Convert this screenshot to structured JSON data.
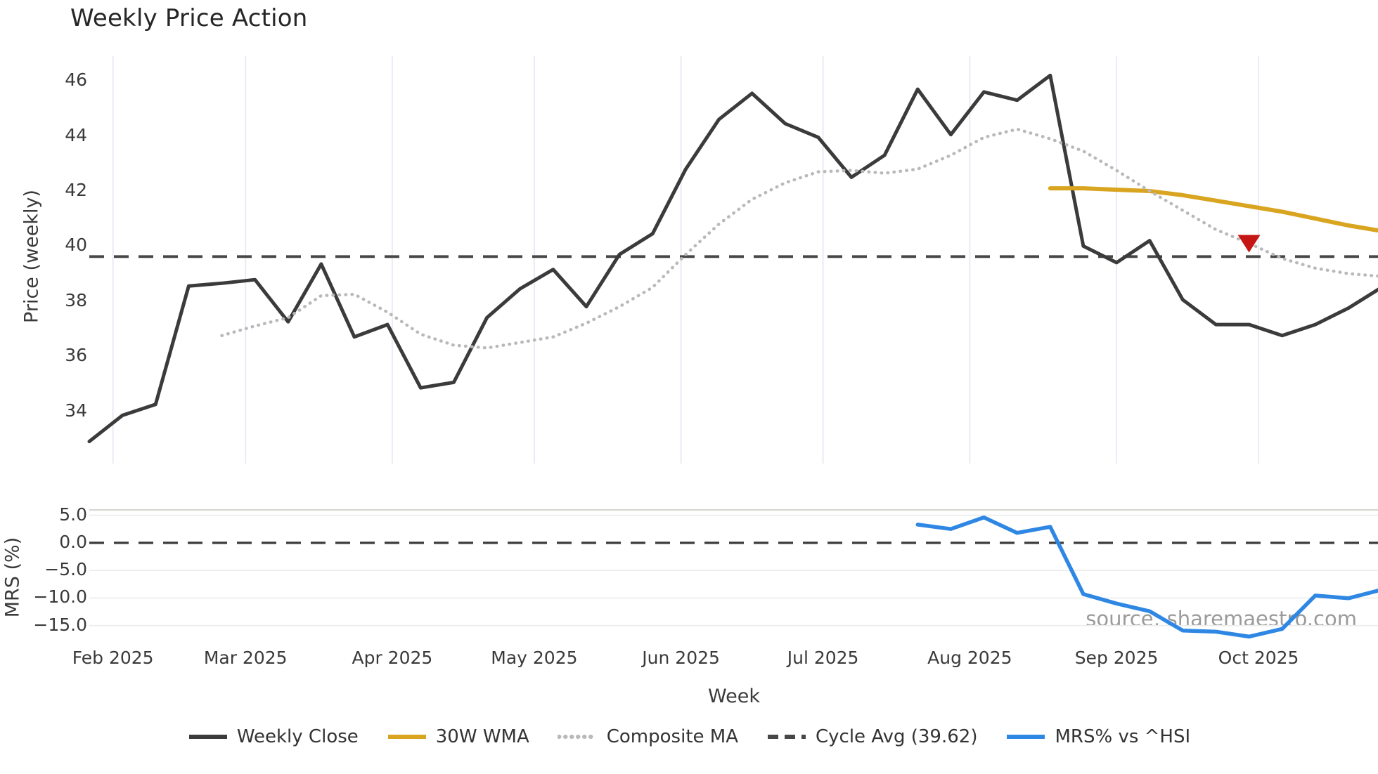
{
  "page": {
    "title": "Weekly Price Action",
    "watermark": "source: sharemaestro.com"
  },
  "axes": {
    "x": {
      "label": "Week",
      "ticks": [
        {
          "date": "2025-02-01",
          "label": "Feb 2025"
        },
        {
          "date": "2025-03-01",
          "label": "Mar 2025"
        },
        {
          "date": "2025-04-01",
          "label": "Apr 2025"
        },
        {
          "date": "2025-05-01",
          "label": "May 2025"
        },
        {
          "date": "2025-06-01",
          "label": "Jun 2025"
        },
        {
          "date": "2025-07-01",
          "label": "Jul 2025"
        },
        {
          "date": "2025-08-01",
          "label": "Aug 2025"
        },
        {
          "date": "2025-09-01",
          "label": "Sep 2025"
        },
        {
          "date": "2025-10-01",
          "label": "Oct 2025"
        }
      ]
    },
    "price": {
      "label": "Price (weekly)",
      "ticks": [
        {
          "v": 46,
          "label": "46"
        },
        {
          "v": 44,
          "label": "44"
        },
        {
          "v": 42,
          "label": "42"
        },
        {
          "v": 40,
          "label": "40"
        },
        {
          "v": 38,
          "label": "38"
        },
        {
          "v": 36,
          "label": "36"
        },
        {
          "v": 34,
          "label": "34"
        }
      ]
    },
    "mrs": {
      "label": "MRS (%)",
      "ticks": [
        {
          "v": 5,
          "label": "5.0"
        },
        {
          "v": 0,
          "label": "0.0"
        },
        {
          "v": -5,
          "label": "−5.0"
        },
        {
          "v": -10,
          "label": "−10.0"
        },
        {
          "v": -15,
          "label": "−15.0"
        }
      ]
    }
  },
  "legend": [
    {
      "label": "Weekly Close",
      "color": "#3b3b3b",
      "style": "solid"
    },
    {
      "label": "30W WMA",
      "color": "#d9a521",
      "style": "solid"
    },
    {
      "label": "Composite MA",
      "color": "#b9b9b9",
      "style": "dotted"
    },
    {
      "label": "Cycle Avg (39.62)",
      "color": "#474747",
      "style": "dashed"
    },
    {
      "label": "MRS% vs ^HSI",
      "color": "#2f87e4",
      "style": "solid"
    }
  ],
  "chart_data": {
    "type": "line",
    "title": "Weekly Price Action",
    "xlabel": "Week",
    "panels": [
      {
        "id": "price",
        "ylabel": "Price (weekly)",
        "ylim": [
          32.1,
          46.9
        ],
        "grid": "vertical-months"
      },
      {
        "id": "mrs",
        "ylabel": "MRS (%)",
        "ylim": [
          -17.2,
          8.0
        ],
        "grid": "horizontal"
      }
    ],
    "weeks": [
      "2025-01-27",
      "2025-02-03",
      "2025-02-10",
      "2025-02-17",
      "2025-02-24",
      "2025-03-03",
      "2025-03-10",
      "2025-03-17",
      "2025-03-24",
      "2025-03-31",
      "2025-04-07",
      "2025-04-14",
      "2025-04-21",
      "2025-04-28",
      "2025-05-05",
      "2025-05-12",
      "2025-05-19",
      "2025-05-26",
      "2025-06-02",
      "2025-06-09",
      "2025-06-16",
      "2025-06-23",
      "2025-06-30",
      "2025-07-07",
      "2025-07-14",
      "2025-07-21",
      "2025-07-28",
      "2025-08-04",
      "2025-08-11",
      "2025-08-18",
      "2025-08-25",
      "2025-09-01",
      "2025-09-08",
      "2025-09-15",
      "2025-09-22",
      "2025-09-29",
      "2025-10-06",
      "2025-10-13",
      "2025-10-20",
      "2025-10-27"
    ],
    "series": [
      {
        "name": "Weekly Close",
        "panel": "price",
        "color": "#3b3b3b",
        "style": "solid",
        "width": 5,
        "values": [
          32.9,
          33.85,
          34.25,
          38.55,
          38.65,
          38.78,
          37.25,
          39.35,
          36.7,
          37.15,
          34.85,
          35.05,
          37.4,
          38.45,
          39.15,
          37.8,
          39.7,
          40.45,
          42.8,
          44.6,
          45.55,
          44.45,
          43.95,
          42.5,
          43.3,
          45.7,
          44.05,
          45.6,
          45.3,
          46.2,
          40.0,
          39.4,
          40.2,
          38.05,
          37.15,
          37.15,
          36.75,
          37.15,
          37.75,
          38.5
        ]
      },
      {
        "name": "30W WMA",
        "panel": "price",
        "color": "#d9a521",
        "style": "solid",
        "width": 6,
        "values": [
          null,
          null,
          null,
          null,
          null,
          null,
          null,
          null,
          null,
          null,
          null,
          null,
          null,
          null,
          null,
          null,
          null,
          null,
          null,
          null,
          null,
          null,
          null,
          null,
          null,
          null,
          null,
          null,
          null,
          42.1,
          42.1,
          42.05,
          42.0,
          41.85,
          41.65,
          41.45,
          41.25,
          41.0,
          40.75,
          40.55
        ]
      },
      {
        "name": "Composite MA",
        "panel": "price",
        "color": "#b9b9b9",
        "style": "dotted",
        "width": 4.5,
        "values": [
          null,
          null,
          null,
          null,
          36.75,
          37.1,
          37.4,
          38.2,
          38.25,
          37.6,
          36.8,
          36.4,
          36.3,
          36.5,
          36.7,
          37.2,
          37.8,
          38.5,
          39.7,
          40.8,
          41.7,
          42.3,
          42.7,
          42.75,
          42.65,
          42.8,
          43.3,
          43.95,
          44.25,
          43.9,
          43.45,
          42.75,
          42.0,
          41.3,
          40.6,
          40.1,
          39.55,
          39.2,
          39.0,
          38.9
        ]
      },
      {
        "name": "MRS% vs ^HSI",
        "panel": "mrs",
        "color": "#2f87e4",
        "style": "solid",
        "width": 5.5,
        "values": [
          null,
          null,
          null,
          null,
          null,
          null,
          null,
          null,
          null,
          null,
          null,
          null,
          null,
          null,
          null,
          null,
          null,
          null,
          null,
          null,
          null,
          null,
          null,
          null,
          null,
          3.3,
          2.5,
          4.6,
          1.8,
          2.9,
          -9.3,
          -11.0,
          -12.4,
          -15.9,
          -16.1,
          -17.0,
          -15.6,
          -9.55,
          -10.05,
          -8.5
        ]
      }
    ],
    "reference_lines": [
      {
        "name": "Cycle Avg (39.62)",
        "panel": "price",
        "value": 39.62,
        "color": "#474747",
        "style": "dashed"
      },
      {
        "name": "Zero line",
        "panel": "mrs",
        "value": 0.0,
        "color": "#3a3a3a",
        "style": "dashed"
      }
    ],
    "marker": {
      "name": "sell-signal",
      "panel": "price",
      "date": "2025-09-29",
      "value": 40.1,
      "shape": "triangle-down",
      "color": "#c51616"
    }
  }
}
